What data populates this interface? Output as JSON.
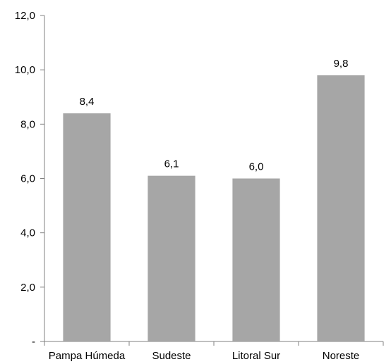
{
  "chart_data": {
    "type": "bar",
    "categories": [
      "Pampa Húmeda",
      "Sudeste",
      "Litoral Sur",
      "Noreste"
    ],
    "values": [
      8.4,
      6.1,
      6.0,
      9.8
    ],
    "data_labels": [
      "8,4",
      "6,1",
      "6,0",
      "9,8"
    ],
    "y_ticks": [
      0,
      2,
      4,
      6,
      8,
      10,
      12
    ],
    "y_tick_labels": [
      "-",
      "2,0",
      "4,0",
      "6,0",
      "8,0",
      "10,0",
      "12,0"
    ],
    "ylim": [
      0,
      12
    ],
    "grid": false,
    "legend": "none",
    "title": "",
    "xlabel": "",
    "ylabel": "",
    "bar_color": "#a6a6a6",
    "axis_color": "#808080"
  }
}
